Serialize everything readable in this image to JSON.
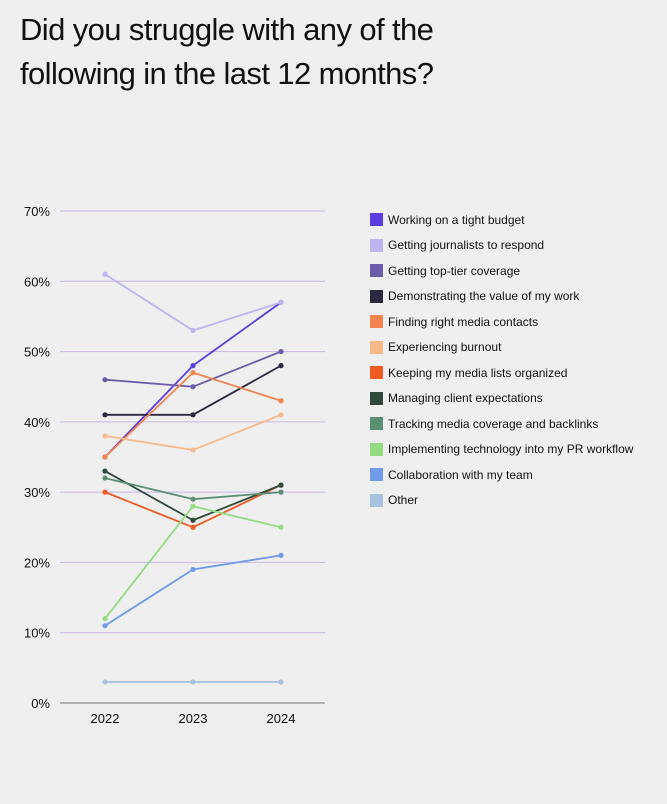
{
  "title": "Did you struggle with any of the following in the last 12 months?",
  "chart_data": {
    "type": "line",
    "x": [
      "2022",
      "2023",
      "2024"
    ],
    "ylim": [
      0,
      70
    ],
    "yticks": [
      0,
      10,
      20,
      30,
      40,
      50,
      60,
      70
    ],
    "ytick_labels": [
      "0%",
      "10%",
      "20%",
      "30%",
      "40%",
      "50%",
      "60%",
      "70%"
    ],
    "grid": true,
    "legend_position": "right",
    "series": [
      {
        "name": "Working on a tight budget",
        "color": "#5b3de0",
        "values": [
          35,
          48,
          57
        ]
      },
      {
        "name": "Getting journalists to respond",
        "color": "#bdb4f0",
        "values": [
          61,
          53,
          57
        ]
      },
      {
        "name": "Getting top-tier coverage",
        "color": "#6a5ca8",
        "values": [
          46,
          45,
          50
        ]
      },
      {
        "name": "Demonstrating the value of my work",
        "color": "#2a2940",
        "values": [
          41,
          41,
          48
        ]
      },
      {
        "name": "Finding right media contacts",
        "color": "#f2854f",
        "values": [
          35,
          47,
          43
        ]
      },
      {
        "name": "Experiencing burnout",
        "color": "#f7b98a",
        "values": [
          38,
          36,
          41
        ]
      },
      {
        "name": "Keeping my media lists organized",
        "color": "#ef5a22",
        "values": [
          30,
          25,
          31
        ]
      },
      {
        "name": "Managing client expectations",
        "color": "#2f4a3a",
        "values": [
          33,
          26,
          31
        ]
      },
      {
        "name": "Tracking media coverage and backlinks",
        "color": "#5b8f73",
        "values": [
          32,
          29,
          30
        ]
      },
      {
        "name": "Implementing technology into my PR workflow",
        "color": "#93dc82",
        "values": [
          12,
          28,
          25
        ]
      },
      {
        "name": "Collaboration with my team",
        "color": "#6f9be8",
        "values": [
          11,
          19,
          21
        ]
      },
      {
        "name": "Other",
        "color": "#a9c2df",
        "values": [
          3,
          3,
          3
        ]
      }
    ]
  }
}
